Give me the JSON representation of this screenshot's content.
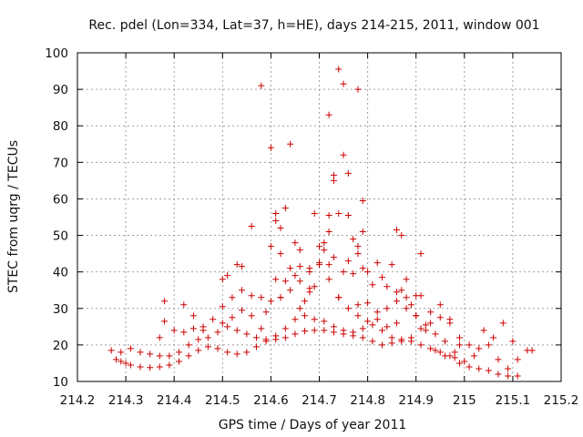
{
  "chart_data": {
    "type": "scatter",
    "title": "Rec. pdel (Lon=334, Lat=37, h=HE), days 214-215, 2011, window 001",
    "xlabel": "GPS time / Days of year 2011",
    "ylabel": "STEC from uqrg / TECUs",
    "xlim": [
      214.2,
      215.2
    ],
    "ylim": [
      10,
      100
    ],
    "xticks": [
      "214.2",
      "214.3",
      "214.4",
      "214.5",
      "214.6",
      "214.7",
      "214.8",
      "214.9",
      "215",
      "215.1",
      "215.2"
    ],
    "yticks": [
      "10",
      "20",
      "30",
      "40",
      "50",
      "60",
      "70",
      "80",
      "90",
      "100"
    ],
    "grid": true,
    "marker": "plus",
    "color": "#cc0000",
    "series": [
      {
        "points": [
          [
            214.27,
            18.5
          ],
          [
            214.28,
            16.0
          ],
          [
            214.29,
            15.5
          ],
          [
            214.3,
            15.0
          ],
          [
            214.31,
            14.5
          ],
          [
            214.33,
            14.0
          ],
          [
            214.35,
            13.8
          ],
          [
            214.37,
            14.0
          ],
          [
            214.39,
            14.5
          ],
          [
            214.41,
            15.5
          ],
          [
            214.43,
            17.0
          ],
          [
            214.45,
            18.5
          ],
          [
            214.47,
            19.5
          ],
          [
            214.49,
            19.0
          ],
          [
            214.51,
            18.0
          ],
          [
            214.53,
            17.5
          ],
          [
            214.55,
            18.0
          ],
          [
            214.57,
            19.5
          ],
          [
            214.59,
            21.0
          ],
          [
            214.61,
            21.5
          ],
          [
            214.63,
            22.0
          ],
          [
            214.65,
            23.0
          ],
          [
            214.67,
            23.8
          ],
          [
            214.69,
            24.0
          ],
          [
            214.71,
            24.0
          ],
          [
            214.73,
            23.5
          ],
          [
            214.75,
            23.0
          ],
          [
            214.77,
            22.5
          ],
          [
            214.79,
            22.0
          ],
          [
            214.81,
            21.0
          ],
          [
            214.83,
            20.0
          ],
          [
            214.85,
            20.5
          ],
          [
            214.87,
            21.0
          ],
          [
            214.89,
            21.0
          ],
          [
            214.91,
            20.0
          ],
          [
            214.93,
            19.0
          ],
          [
            214.95,
            18.0
          ],
          [
            214.97,
            17.0
          ],
          [
            214.99,
            15.0
          ],
          [
            215.01,
            14.0
          ],
          [
            215.03,
            13.5
          ],
          [
            215.05,
            13.0
          ],
          [
            215.07,
            12.0
          ],
          [
            215.09,
            11.5
          ],
          [
            215.11,
            11.5
          ],
          [
            214.29,
            18.0
          ],
          [
            214.31,
            19.0
          ],
          [
            214.33,
            18.0
          ],
          [
            214.35,
            17.5
          ],
          [
            214.37,
            17.0
          ],
          [
            214.39,
            17.0
          ],
          [
            214.41,
            18.0
          ],
          [
            214.43,
            20.0
          ],
          [
            214.45,
            21.5
          ],
          [
            214.47,
            22.0
          ],
          [
            214.49,
            23.5
          ],
          [
            214.51,
            25.0
          ],
          [
            214.53,
            24.0
          ],
          [
            214.55,
            23.0
          ],
          [
            214.57,
            22.0
          ],
          [
            214.59,
            21.5
          ],
          [
            214.61,
            22.5
          ],
          [
            214.63,
            24.5
          ],
          [
            214.65,
            27.0
          ],
          [
            214.67,
            28.0
          ],
          [
            214.69,
            27.0
          ],
          [
            214.71,
            26.5
          ],
          [
            214.73,
            25.0
          ],
          [
            214.75,
            24.0
          ],
          [
            214.77,
            23.5
          ],
          [
            214.79,
            24.5
          ],
          [
            214.81,
            25.5
          ],
          [
            214.83,
            24.0
          ],
          [
            214.85,
            22.0
          ],
          [
            214.87,
            21.5
          ],
          [
            214.89,
            22.0
          ],
          [
            214.91,
            24.5
          ],
          [
            214.93,
            26.0
          ],
          [
            214.95,
            27.5
          ],
          [
            214.97,
            27.0
          ],
          [
            214.99,
            22.0
          ],
          [
            215.01,
            20.0
          ],
          [
            215.03,
            19.0
          ],
          [
            215.05,
            20.0
          ],
          [
            215.07,
            16.0
          ],
          [
            215.09,
            13.5
          ],
          [
            215.11,
            16.0
          ],
          [
            215.13,
            18.5
          ],
          [
            215.14,
            18.5
          ],
          [
            214.38,
            26.5
          ],
          [
            214.4,
            24.0
          ],
          [
            214.42,
            23.5
          ],
          [
            214.44,
            24.5
          ],
          [
            214.46,
            25.0
          ],
          [
            214.48,
            27.0
          ],
          [
            214.5,
            30.5
          ],
          [
            214.52,
            33.0
          ],
          [
            214.54,
            35.0
          ],
          [
            214.56,
            33.5
          ],
          [
            214.58,
            33.0
          ],
          [
            214.6,
            32.0
          ],
          [
            214.62,
            33.0
          ],
          [
            214.64,
            35.0
          ],
          [
            214.66,
            37.5
          ],
          [
            214.68,
            40.0
          ],
          [
            214.7,
            42.0
          ],
          [
            214.72,
            38.0
          ],
          [
            214.74,
            33.0
          ],
          [
            214.76,
            30.0
          ],
          [
            214.78,
            31.0
          ],
          [
            214.8,
            31.5
          ],
          [
            214.82,
            29.0
          ],
          [
            214.84,
            30.0
          ],
          [
            214.86,
            32.0
          ],
          [
            214.88,
            33.0
          ],
          [
            214.9,
            28.0
          ],
          [
            214.92,
            25.5
          ],
          [
            214.94,
            23.0
          ],
          [
            214.96,
            21.0
          ],
          [
            214.98,
            18.0
          ],
          [
            214.37,
            22.0
          ],
          [
            214.38,
            32.0
          ],
          [
            214.42,
            31.0
          ],
          [
            214.44,
            28.0
          ],
          [
            214.46,
            24.0
          ],
          [
            214.5,
            38.0
          ],
          [
            214.51,
            39.0
          ],
          [
            214.53,
            42.0
          ],
          [
            214.54,
            41.5
          ],
          [
            214.56,
            52.5
          ],
          [
            214.58,
            24.5
          ],
          [
            214.59,
            29.0
          ],
          [
            214.6,
            47.0
          ],
          [
            214.61,
            38.0
          ],
          [
            214.62,
            45.0
          ],
          [
            214.63,
            37.5
          ],
          [
            214.64,
            41.0
          ],
          [
            214.65,
            39.0
          ],
          [
            214.66,
            30.0
          ],
          [
            214.67,
            32.0
          ],
          [
            214.68,
            35.5
          ],
          [
            214.69,
            36.0
          ],
          [
            214.7,
            47.0
          ],
          [
            214.71,
            48.0
          ],
          [
            214.72,
            51.0
          ],
          [
            214.73,
            44.0
          ],
          [
            214.74,
            56.0
          ],
          [
            214.75,
            40.0
          ],
          [
            214.76,
            43.0
          ],
          [
            214.77,
            39.5
          ],
          [
            214.78,
            45.0
          ],
          [
            214.79,
            41.0
          ],
          [
            214.8,
            40.0
          ],
          [
            214.81,
            36.5
          ],
          [
            214.82,
            42.5
          ],
          [
            214.83,
            38.5
          ],
          [
            214.84,
            36.0
          ],
          [
            214.85,
            42.0
          ],
          [
            214.86,
            34.5
          ],
          [
            214.87,
            35.0
          ],
          [
            214.88,
            38.0
          ],
          [
            214.89,
            31.0
          ],
          [
            214.9,
            33.5
          ],
          [
            214.91,
            33.5
          ],
          [
            214.93,
            29.0
          ],
          [
            214.95,
            31.0
          ],
          [
            214.97,
            26.0
          ],
          [
            214.99,
            20.0
          ],
          [
            215.0,
            15.5
          ],
          [
            215.02,
            17.0
          ],
          [
            215.04,
            24.0
          ],
          [
            215.06,
            22.0
          ],
          [
            215.08,
            26.0
          ],
          [
            215.1,
            21.0
          ],
          [
            214.58,
            91.0
          ],
          [
            214.6,
            74.0
          ],
          [
            214.61,
            56.0
          ],
          [
            214.61,
            54.0
          ],
          [
            214.62,
            52.0
          ],
          [
            214.63,
            57.5
          ],
          [
            214.64,
            75.0
          ],
          [
            214.65,
            48.0
          ],
          [
            214.66,
            46.0
          ],
          [
            214.68,
            41.0
          ],
          [
            214.69,
            56.0
          ],
          [
            214.7,
            42.5
          ],
          [
            214.71,
            46.0
          ],
          [
            214.72,
            83.0
          ],
          [
            214.72,
            55.5
          ],
          [
            214.73,
            65.0
          ],
          [
            214.73,
            66.5
          ],
          [
            214.74,
            95.5
          ],
          [
            214.75,
            91.5
          ],
          [
            214.75,
            72.0
          ],
          [
            214.76,
            67.0
          ],
          [
            214.76,
            55.5
          ],
          [
            214.77,
            49.0
          ],
          [
            214.78,
            90.0
          ],
          [
            214.78,
            47.0
          ],
          [
            214.79,
            59.5
          ],
          [
            214.79,
            51.0
          ],
          [
            214.86,
            51.5
          ],
          [
            214.87,
            50.0
          ],
          [
            214.91,
            45.0
          ],
          [
            214.5,
            26.0
          ],
          [
            214.52,
            27.5
          ],
          [
            214.54,
            29.5
          ],
          [
            214.56,
            28.0
          ],
          [
            214.62,
            33.0
          ],
          [
            214.66,
            41.5
          ],
          [
            214.68,
            34.5
          ],
          [
            214.72,
            42.0
          ],
          [
            214.74,
            33.0
          ],
          [
            214.78,
            28.0
          ],
          [
            214.8,
            26.5
          ],
          [
            214.82,
            27.0
          ],
          [
            214.84,
            25.0
          ],
          [
            214.86,
            26.0
          ],
          [
            214.88,
            30.0
          ],
          [
            214.9,
            28.0
          ],
          [
            214.92,
            24.0
          ],
          [
            214.94,
            18.5
          ],
          [
            214.96,
            17.0
          ],
          [
            214.98,
            16.5
          ]
        ]
      }
    ]
  }
}
